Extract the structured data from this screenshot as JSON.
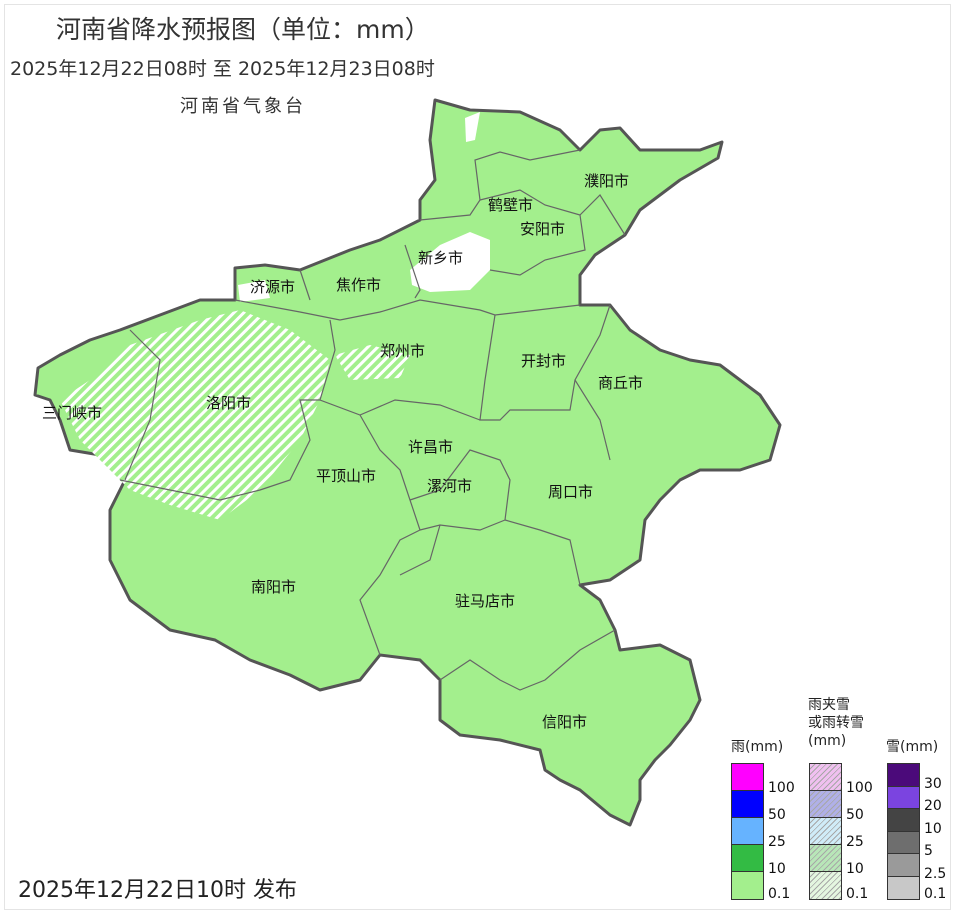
{
  "header": {
    "title": "河南省降水预报图（单位：mm）",
    "period": "2025年12月22日08时  至  2025年12月23日08时",
    "agency": "河南省气象台"
  },
  "footer": {
    "issued": "2025年12月22日10时 发布"
  },
  "map": {
    "fill_color": "#a3ef8d",
    "border_color": "#555555",
    "cities": [
      "濮阳市",
      "鹤壁市",
      "安阳市",
      "新乡市",
      "济源市",
      "焦作市",
      "郑州市",
      "开封市",
      "商丘市",
      "三门峡市",
      "洛阳市",
      "许昌市",
      "平顶山市",
      "漯河市",
      "周口市",
      "南阳市",
      "驻马店市",
      "信阳市"
    ]
  },
  "legend": {
    "rain": {
      "title": "雨(mm)",
      "colors": [
        "#ff00ff",
        "#0000ff",
        "#66b3ff",
        "#33bb44",
        "#a3ef8d"
      ],
      "labels": [
        "100",
        "50",
        "25",
        "10",
        "0.1"
      ]
    },
    "mixed": {
      "title_line1": "雨夹雪",
      "title_line2": "或雨转雪",
      "title_line3": "(mm)",
      "colors": [
        "#f0c0f0",
        "#b0b0e8",
        "#d0ecf8",
        "#b8e6b8",
        "#e4f6e0"
      ],
      "labels": [
        "100",
        "50",
        "25",
        "10",
        "0.1"
      ]
    },
    "snow": {
      "title": "雪(mm)",
      "colors": [
        "#4b0a7a",
        "#7b44e0",
        "#444444",
        "#6e6e6e",
        "#9a9a9a",
        "#c8c8c8"
      ],
      "labels": [
        "30",
        "20",
        "10",
        "5",
        "2.5",
        "0.1"
      ]
    }
  }
}
